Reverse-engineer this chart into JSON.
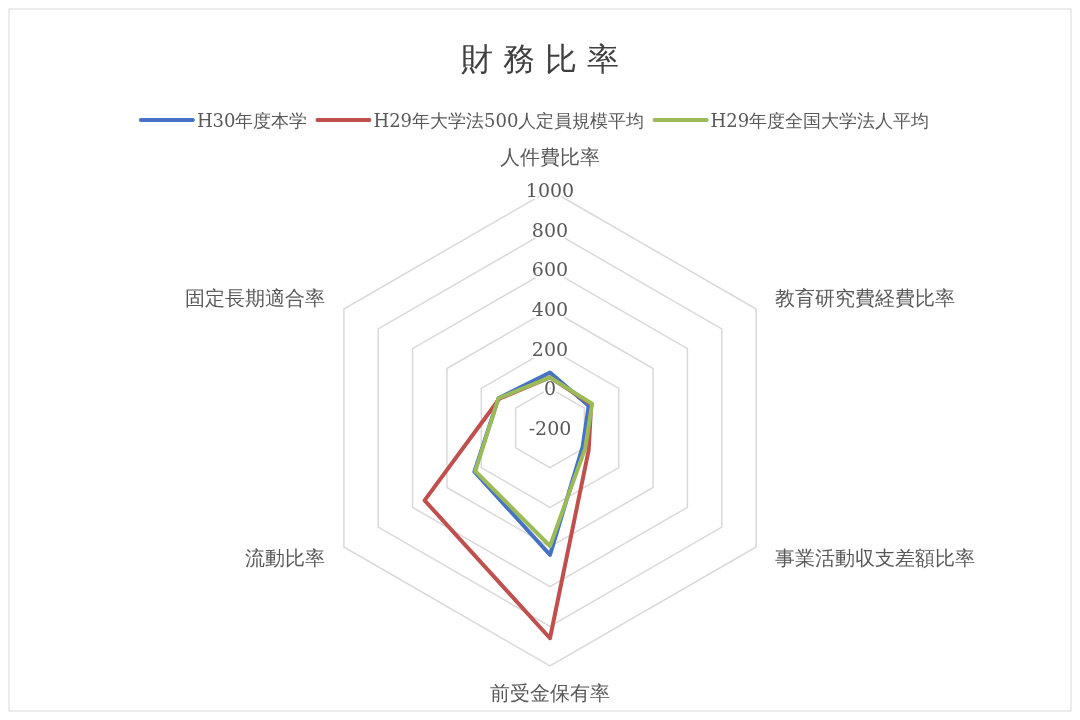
{
  "chart_data": {
    "type": "radar",
    "title": "財 務 比 率",
    "categories": [
      "人件費比率",
      "教育研究費経費比率",
      "事業活動収支差額比率",
      "前受金保有率",
      "流動比率",
      "固定長期適合率"
    ],
    "series": [
      {
        "name": "H30年度本学",
        "color": "#4472c4",
        "values": [
          80,
          25,
          -10,
          440,
          240,
          100
        ]
      },
      {
        "name": "H29年大学法500人定員規模平均",
        "color": "#c0504d",
        "values": [
          55,
          40,
          25,
          860,
          530,
          95
        ]
      },
      {
        "name": "H29年度全国大学法人平均",
        "color": "#9bbb59",
        "values": [
          55,
          45,
          5,
          395,
          235,
          100
        ]
      }
    ],
    "ylim": [
      -200,
      1000
    ],
    "yticks": [
      -200,
      0,
      200,
      400,
      600,
      800,
      1000
    ],
    "grid": true,
    "legend": "top",
    "marker": "none"
  }
}
